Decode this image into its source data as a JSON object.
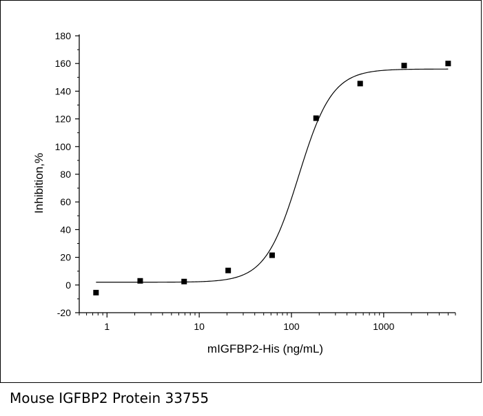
{
  "caption": "Mouse IGFBP2 Protein 33755",
  "chart_data": {
    "type": "scatter",
    "title": "",
    "xlabel": "mIGFBP2-His (ng/mL)",
    "ylabel": "Inhibition,%",
    "x_scale": "log",
    "xlim": [
      0.5,
      6000
    ],
    "ylim": [
      -20,
      180
    ],
    "x_ticks": [
      1,
      10,
      100,
      1000
    ],
    "x_tick_labels": [
      "1",
      "10",
      "100",
      "1000"
    ],
    "y_ticks": [
      -20,
      0,
      20,
      40,
      60,
      80,
      100,
      120,
      140,
      160,
      180
    ],
    "y_tick_labels": [
      "-20",
      "0",
      "20",
      "40",
      "60",
      "80",
      "100",
      "120",
      "140",
      "160",
      "180"
    ],
    "grid": false,
    "series": [
      {
        "type": "scatter",
        "marker": "square",
        "color": "#000000",
        "x": [
          0.76,
          2.29,
          6.86,
          20.6,
          61.7,
          185,
          556,
          1667,
          5000
        ],
        "y": [
          -5.5,
          3.0,
          2.5,
          10.5,
          21.5,
          120.5,
          145.5,
          158.5,
          160.0
        ]
      },
      {
        "type": "line",
        "fit": "logistic",
        "color": "#000000",
        "bottom": 2.0,
        "top": 156.0,
        "ec50": 120,
        "hill": 2.4,
        "x_range": [
          0.76,
          5000
        ]
      }
    ]
  }
}
